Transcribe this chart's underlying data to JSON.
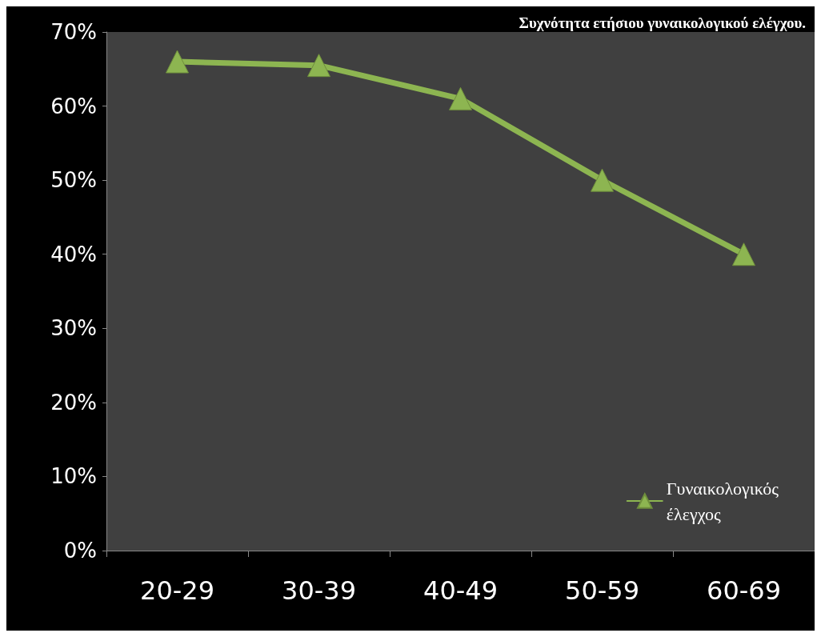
{
  "chart_data": {
    "type": "line",
    "title": "Συχνότητα ετήσιου γυναικολογικού ελέγχου.",
    "categories": [
      "20-29",
      "30-39",
      "40-49",
      "50-59",
      "60-69"
    ],
    "series": [
      {
        "name": "Γυναικολογικός έλεγχος",
        "color": "#8db551",
        "values": [
          66,
          65.5,
          61,
          50,
          40
        ]
      }
    ],
    "ylim": [
      0,
      70
    ],
    "yticks": [
      {
        "value": 0,
        "label": "0%"
      },
      {
        "value": 10,
        "label": "10%"
      },
      {
        "value": 20,
        "label": "20%"
      },
      {
        "value": 30,
        "label": "30%"
      },
      {
        "value": 40,
        "label": "40%"
      },
      {
        "value": 50,
        "label": "50%"
      },
      {
        "value": 60,
        "label": "60%"
      },
      {
        "value": 70,
        "label": "70%"
      }
    ],
    "legend": "bottom right",
    "marker": "triangle"
  }
}
